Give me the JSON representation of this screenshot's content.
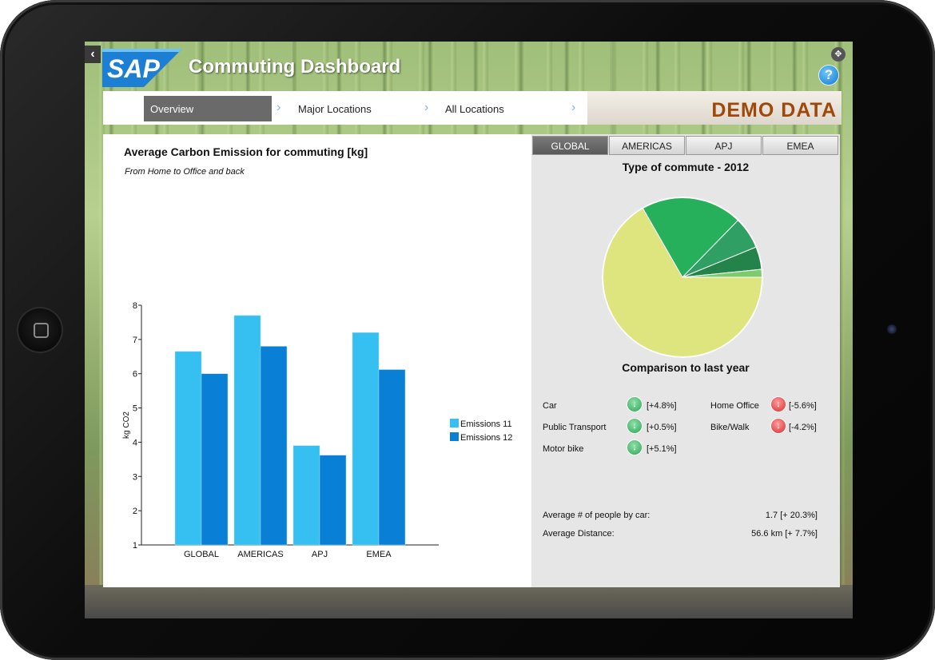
{
  "app": {
    "title": "Commuting Dashboard",
    "logo_text": "SAP",
    "demo_banner": "DEMO DATA"
  },
  "nav": {
    "tabs": [
      {
        "label": "Overview",
        "active": true
      },
      {
        "label": "Major Locations",
        "active": false
      },
      {
        "label": "All Locations",
        "active": false
      }
    ]
  },
  "left": {
    "chart_title": "Average Carbon Emission for commuting [kg]",
    "chart_subtitle": "From Home to Office and back"
  },
  "chart_data": {
    "type": "bar",
    "categories": [
      "GLOBAL",
      "AMERICAS",
      "APJ",
      "EMEA"
    ],
    "series": [
      {
        "name": "Emissions 11",
        "values": [
          6.65,
          7.7,
          3.9,
          7.2
        ],
        "color": "#36c0f2"
      },
      {
        "name": "Emissions 12",
        "values": [
          6.0,
          6.8,
          3.62,
          6.12
        ],
        "color": "#0a7fd6"
      }
    ],
    "ylabel": "kg CO2",
    "ylim": [
      1,
      8
    ],
    "yticks": [
      1,
      2,
      3,
      4,
      5,
      6,
      7,
      8
    ],
    "legend": "right",
    "grid": false
  },
  "right": {
    "region_tabs": [
      {
        "label": "GLOBAL",
        "active": true
      },
      {
        "label": "AMERICAS",
        "active": false
      },
      {
        "label": "APJ",
        "active": false
      },
      {
        "label": "EMEA",
        "active": false
      }
    ],
    "pie_title": "Type of commute - 2012",
    "pie": {
      "type": "pie",
      "slices_percent": [
        66.7,
        20.6,
        6.5,
        4.6,
        1.6
      ],
      "colors": [
        "#dfe57e",
        "#27b05c",
        "#2f9f63",
        "#23834a",
        "#7ecb6e"
      ]
    },
    "comparison_title": "Comparison to last year",
    "comparison": [
      {
        "label": "Car",
        "change": "[+4.8%]",
        "trend": "green"
      },
      {
        "label": "Public Transport",
        "change": "[+0.5%]",
        "trend": "green"
      },
      {
        "label": "Motor bike",
        "change": "[+5.1%]",
        "trend": "green"
      },
      {
        "label": "Home Office",
        "change": "[-5.6%]",
        "trend": "red"
      },
      {
        "label": "Bike/Walk",
        "change": "[-4.2%]",
        "trend": "red"
      }
    ],
    "stats": [
      {
        "label": "Average # of people by car:",
        "value": "1.7 [+ 20.3%]"
      },
      {
        "label": "Average Distance:",
        "value": "56.6 km [+ 7.7%]"
      }
    ]
  }
}
